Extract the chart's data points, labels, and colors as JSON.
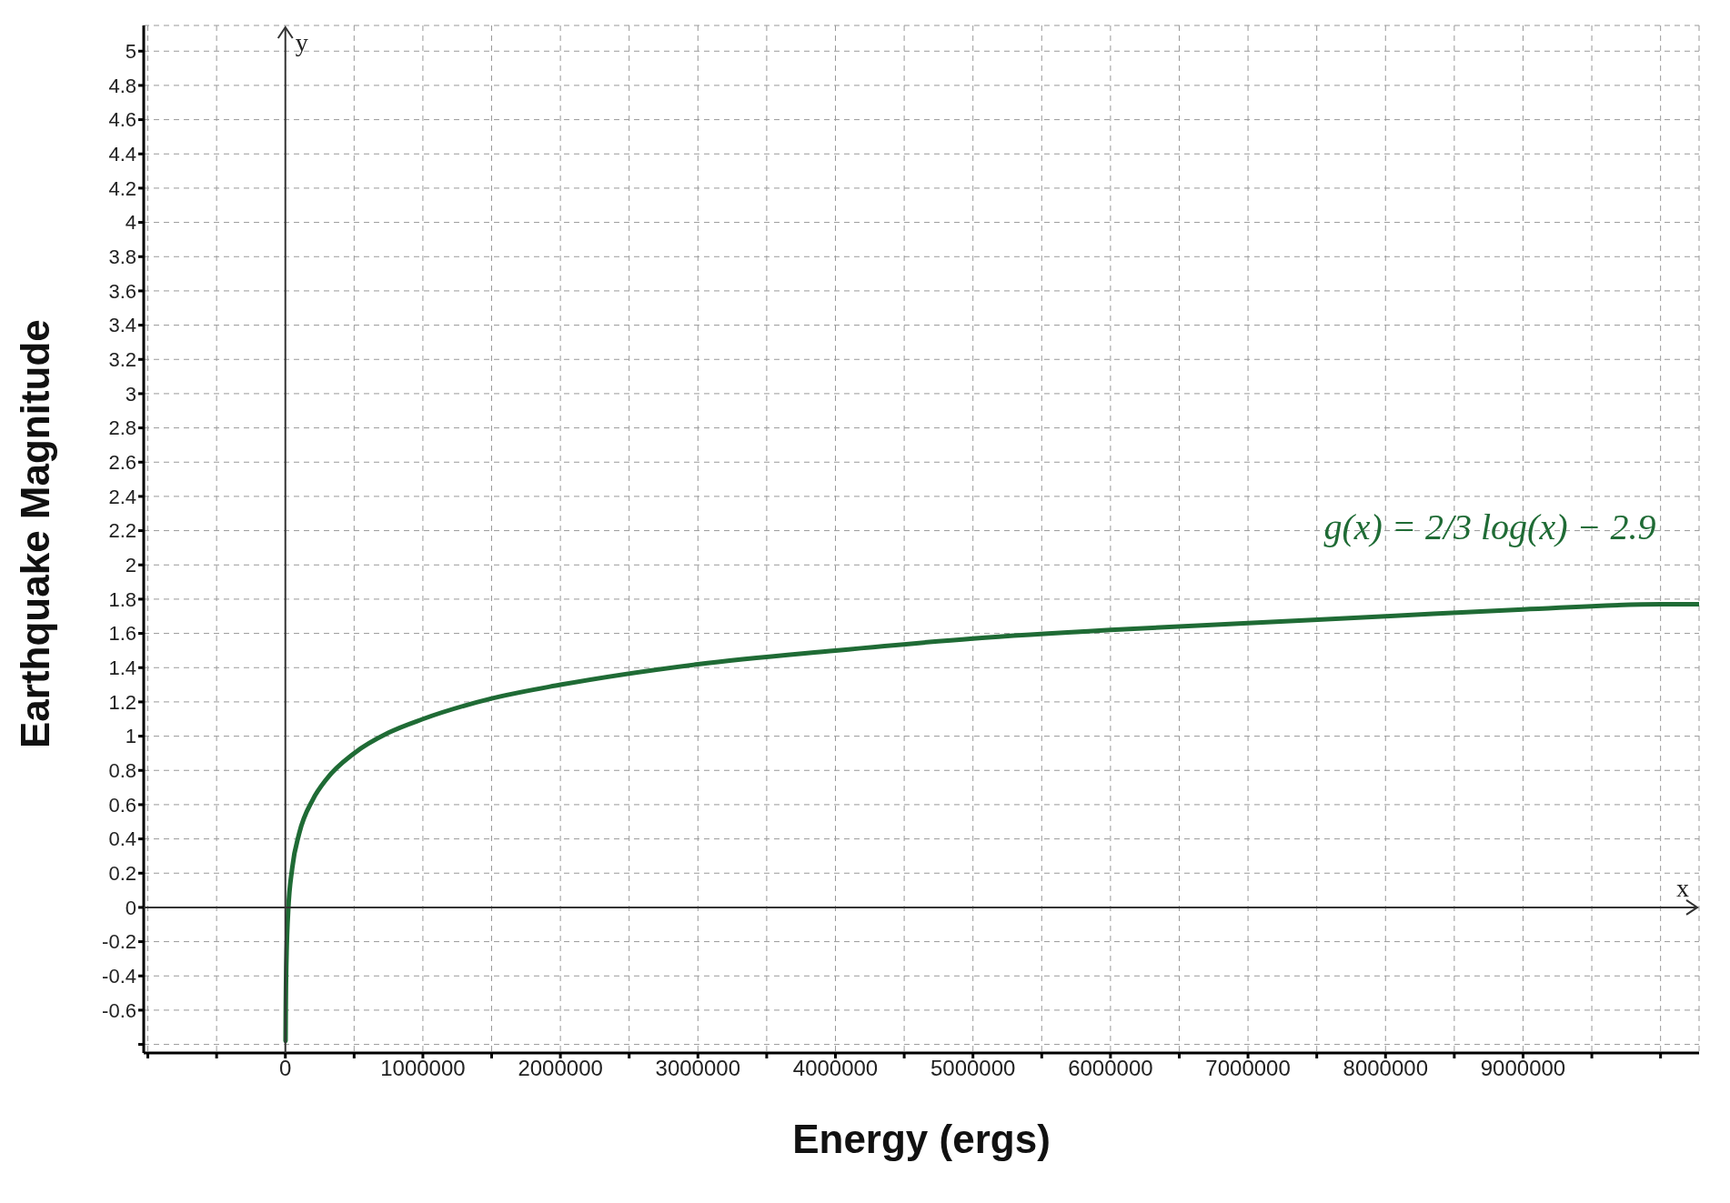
{
  "chart_data": {
    "type": "line",
    "xlabel": "Energy (ergs)",
    "ylabel": "Earthquake Magnitude",
    "x": [
      1500,
      3000,
      5000,
      10000,
      20000,
      50000,
      100000,
      200000,
      300000,
      500000,
      750000,
      1000000,
      1500000,
      2000000,
      3000000,
      4000000,
      5000000,
      6000000,
      7000000,
      8000000,
      9000000,
      10000000,
      10280000
    ],
    "series": [
      {
        "color": "#1f6b35",
        "values": [
          -0.78,
          -0.58,
          -0.43,
          -0.23,
          -0.03,
          0.23,
          0.43,
          0.63,
          0.75,
          0.9,
          1.02,
          1.1,
          1.22,
          1.3,
          1.42,
          1.5,
          1.57,
          1.62,
          1.66,
          1.7,
          1.74,
          1.77,
          1.77
        ]
      }
    ],
    "xlim": [
      -1030000,
      10280000
    ],
    "xticks": [
      {
        "value": -1000000,
        "label": null
      },
      {
        "value": -500000,
        "label": null
      },
      0,
      {
        "value": 500000,
        "label": null
      },
      1000000,
      {
        "value": 1500000,
        "label": null
      },
      2000000,
      {
        "value": 2500000,
        "label": null
      },
      3000000,
      {
        "value": 3500000,
        "label": null
      },
      4000000,
      {
        "value": 4500000,
        "label": null
      },
      5000000,
      {
        "value": 5500000,
        "label": null
      },
      6000000,
      {
        "value": 6500000,
        "label": null
      },
      7000000,
      {
        "value": 7500000,
        "label": null
      },
      8000000,
      {
        "value": 8500000,
        "label": null
      },
      9000000,
      {
        "value": 9500000,
        "label": null
      },
      {
        "value": 10000000,
        "label": null
      }
    ],
    "ylim": [
      -0.85,
      5.15
    ],
    "yticks": [
      {
        "value": -0.8,
        "label": null
      },
      -0.6,
      -0.4,
      -0.2,
      0,
      0.2,
      0.4,
      0.6,
      0.8,
      1,
      1.2,
      1.4,
      1.6,
      1.8,
      2,
      2.2,
      2.4,
      2.6,
      2.8,
      3,
      3.2,
      3.4,
      3.6,
      3.8,
      4,
      4.2,
      4.4,
      4.6,
      4.8,
      5
    ],
    "grid": true,
    "marker": "none",
    "line_style": "solid",
    "annotations": [
      "g(x) = 2/3 log(x) − 2.9",
      "x",
      "y"
    ]
  }
}
